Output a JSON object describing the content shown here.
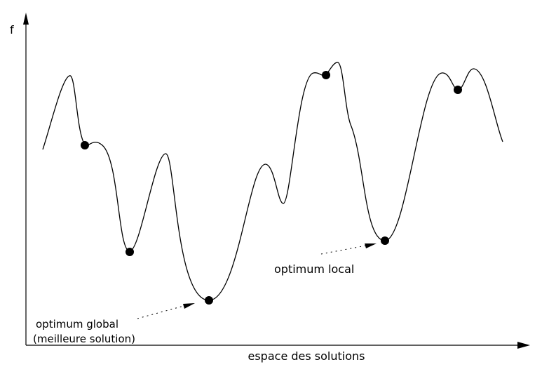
{
  "diagram": {
    "y_axis_label": "f",
    "x_axis_label": "espace des solutions",
    "annotations": {
      "local": "optimum local",
      "global_line1": "optimum global",
      "global_line2": "(meilleure solution)"
    },
    "colors": {
      "stroke": "#000000",
      "background": "#ffffff"
    }
  }
}
